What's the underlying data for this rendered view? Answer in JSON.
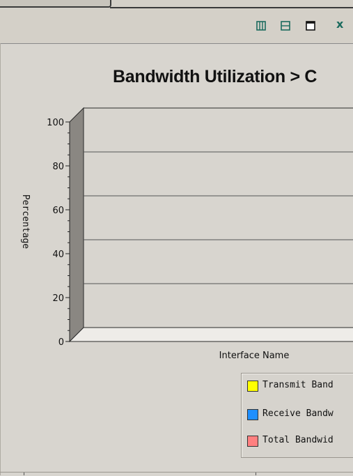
{
  "toolbar": {
    "icons": [
      "split-vertical-icon",
      "split-horizontal-icon",
      "maximize-icon",
      "close-icon"
    ],
    "close_glyph": "x"
  },
  "colors": {
    "background": "#d4d0c8",
    "title": "#111111",
    "transmit": "#ffff00",
    "receive": "#1e8fff",
    "total": "#ff8080",
    "toolbar_icon": "#1b6b5e"
  },
  "chart_data": {
    "type": "bar",
    "title": "Bandwidth Utilization > C",
    "xlabel": "Interface Name",
    "ylabel": "Percentage",
    "ylim": [
      0,
      100
    ],
    "yticks": [
      "0",
      "20",
      "40",
      "60",
      "80",
      "100"
    ],
    "categories": [],
    "grid": true,
    "legend_position": "bottom-right",
    "series": [
      {
        "name": "Transmit Band",
        "color": "#ffff00",
        "values": []
      },
      {
        "name": "Receive Bandw",
        "color": "#1e8fff",
        "values": []
      },
      {
        "name": "Total Bandwid",
        "color": "#ff8080",
        "values": []
      }
    ]
  }
}
